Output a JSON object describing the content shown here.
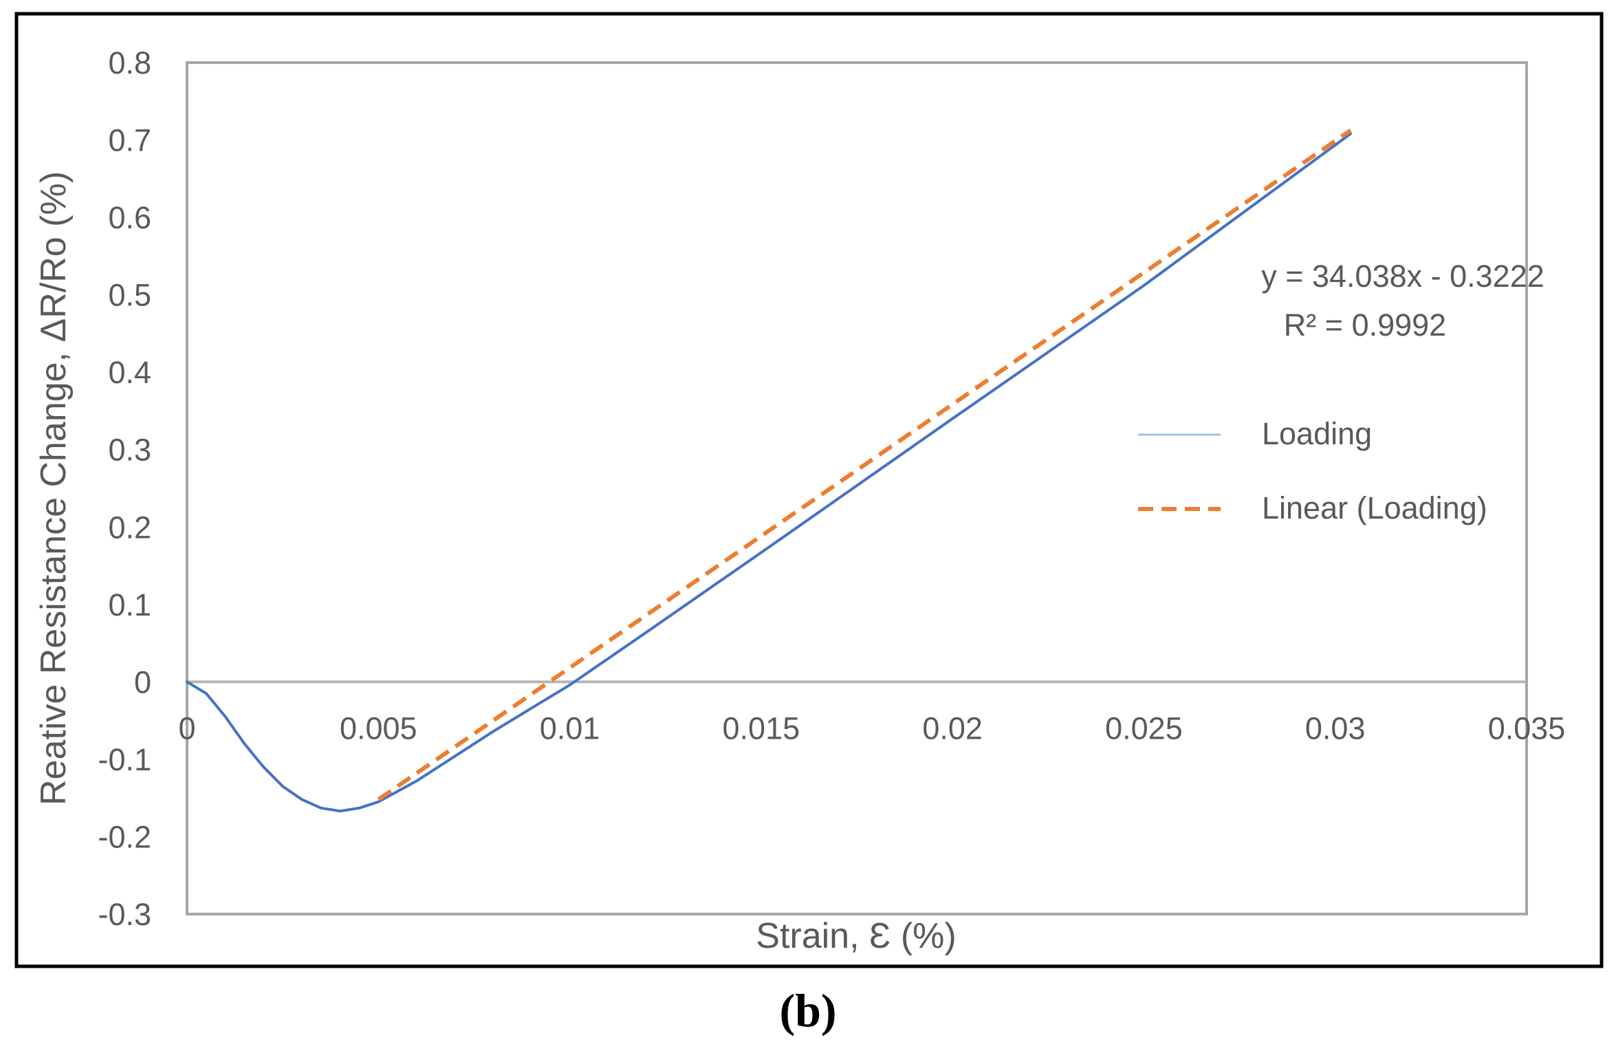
{
  "chart_data": {
    "type": "line",
    "xlabel": "Strain, Ɛ (%)",
    "ylabel": "Reative Resistance Change, ΔR/Ro (%)",
    "xlim": [
      0,
      0.035
    ],
    "ylim": [
      -0.3,
      0.8
    ],
    "xticks": [
      "0",
      "0.005",
      "0.01",
      "0.015",
      "0.02",
      "0.025",
      "0.03",
      "0.035"
    ],
    "yticks": [
      "-0.3",
      "-0.2",
      "-0.1",
      "0",
      "0.1",
      "0.2",
      "0.3",
      "0.4",
      "0.5",
      "0.6",
      "0.7",
      "0.8"
    ],
    "grid": false,
    "legend_position": "right",
    "series": [
      {
        "name": "Loading",
        "style": "solid",
        "color": "#4472c4",
        "points": [
          [
            0,
            0
          ],
          [
            0.0005,
            -0.015
          ],
          [
            0.001,
            -0.045
          ],
          [
            0.0015,
            -0.08
          ],
          [
            0.002,
            -0.11
          ],
          [
            0.0025,
            -0.135
          ],
          [
            0.003,
            -0.152
          ],
          [
            0.0035,
            -0.163
          ],
          [
            0.004,
            -0.167
          ],
          [
            0.0045,
            -0.163
          ],
          [
            0.005,
            -0.155
          ],
          [
            0.006,
            -0.128
          ],
          [
            0.007,
            -0.096
          ],
          [
            0.008,
            -0.064
          ],
          [
            0.009,
            -0.034
          ],
          [
            0.01,
            -0.004
          ],
          [
            0.012,
            0.064
          ],
          [
            0.015,
            0.167
          ],
          [
            0.02,
            0.34
          ],
          [
            0.025,
            0.512
          ],
          [
            0.0304,
            0.708
          ]
        ]
      },
      {
        "name": "Linear (Loading)",
        "style": "dashed",
        "color": "#ed7d31",
        "points": [
          [
            0.005,
            -0.152
          ],
          [
            0.0304,
            0.7125
          ]
        ]
      }
    ],
    "trendline": {
      "equation": "y = 34.038x - 0.3222",
      "r_squared": "R² = 0.9992"
    },
    "panel_label": "(b)"
  }
}
